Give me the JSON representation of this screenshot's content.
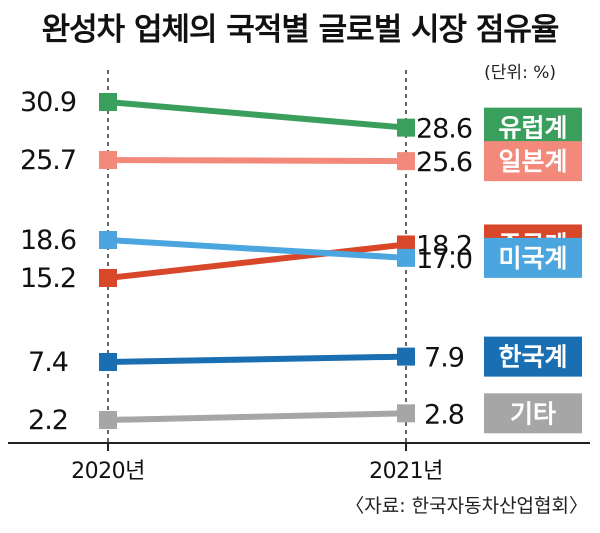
{
  "title": "완성차 업체의 국적별 글로벌 시장 점유율",
  "unit_note": "(단위: %)",
  "source_note": "〈자료: 한국자동차산업협회〉",
  "chart_data": {
    "type": "line",
    "title": "완성차 업체의 국적별 글로벌 시장 점유율",
    "unit": "%",
    "categories": [
      "2020년",
      "2021년"
    ],
    "series": [
      {
        "name": "유럽계",
        "values": [
          30.9,
          28.6
        ],
        "value_labels": [
          "30.9",
          "28.6"
        ],
        "color": "#3a9e5c"
      },
      {
        "name": "일본계",
        "values": [
          25.7,
          25.6
        ],
        "value_labels": [
          "25.7",
          "25.6"
        ],
        "color": "#f2897a"
      },
      {
        "name": "중국계",
        "values": [
          15.2,
          18.2
        ],
        "value_labels": [
          "15.2",
          "18.2"
        ],
        "color": "#d9472b"
      },
      {
        "name": "미국계",
        "values": [
          18.6,
          17.0
        ],
        "value_labels": [
          "18.6",
          "17.0"
        ],
        "color": "#4ba6df"
      },
      {
        "name": "한국계",
        "values": [
          7.4,
          7.9
        ],
        "value_labels": [
          "7.4",
          "7.9"
        ],
        "color": "#1a6fb3"
      },
      {
        "name": "기타",
        "values": [
          2.2,
          2.8
        ],
        "value_labels": [
          "2.2",
          "2.8"
        ],
        "color": "#a6a6a6"
      }
    ],
    "grid": false,
    "legend": "right, labels at line ends"
  }
}
